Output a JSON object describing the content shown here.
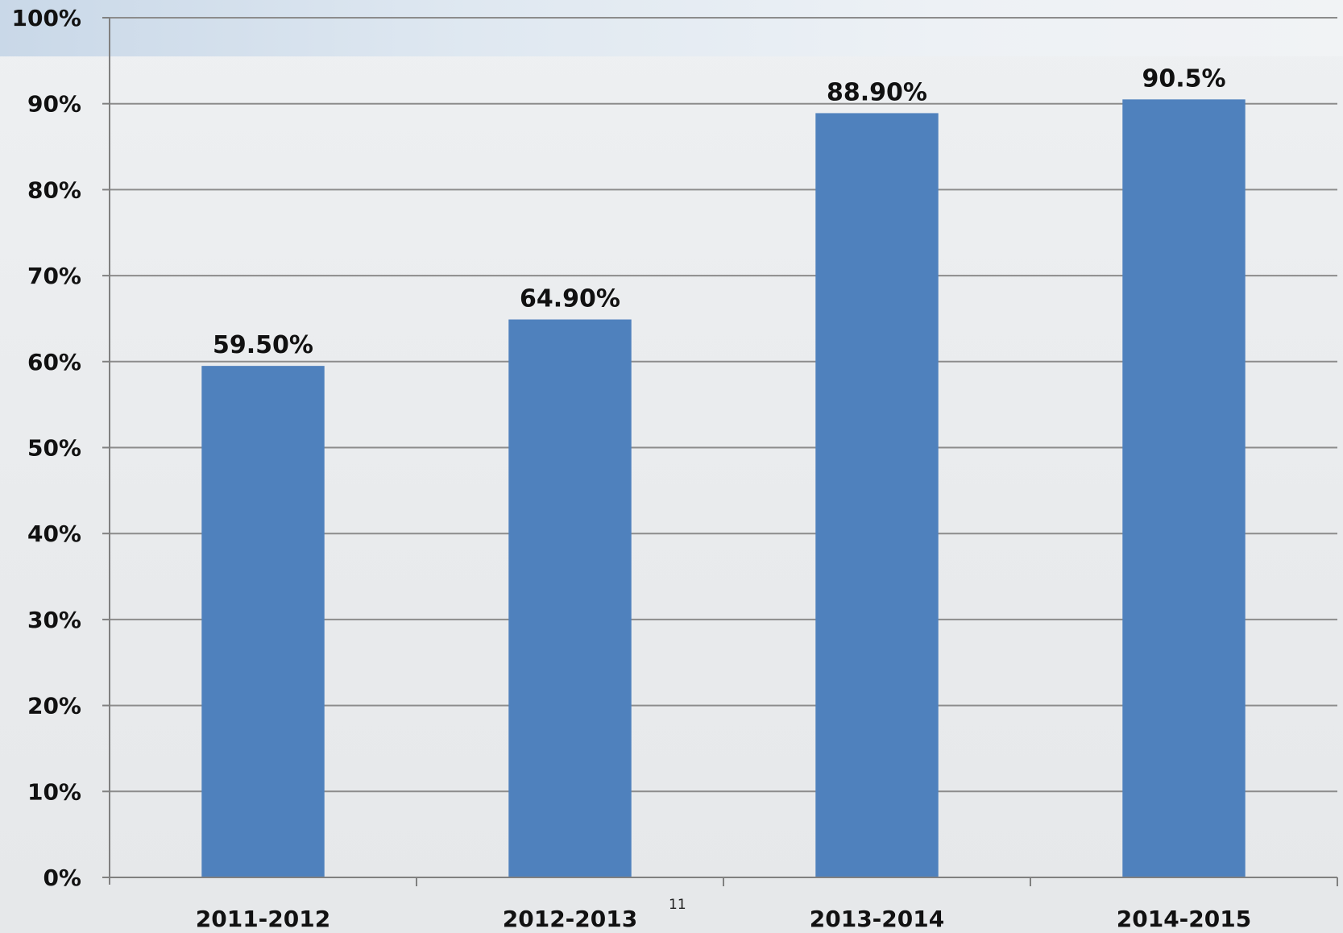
{
  "page_number": "11",
  "chart_data": {
    "type": "bar",
    "categories": [
      "2011-2012",
      "2012-2013",
      "2013-2014",
      "2014-2015"
    ],
    "values": [
      59.5,
      64.9,
      88.9,
      90.5
    ],
    "data_labels": [
      "59.50%",
      "64.90%",
      "88.90%",
      "90.5%"
    ],
    "y_ticks": [
      0,
      10,
      20,
      30,
      40,
      50,
      60,
      70,
      80,
      90,
      100
    ],
    "y_tick_labels": [
      "0%",
      "10%",
      "20%",
      "30%",
      "40%",
      "50%",
      "60%",
      "70%",
      "80%",
      "90%",
      "100%"
    ],
    "ylim": [
      0,
      100
    ],
    "grid": true,
    "legend": "none",
    "colors": {
      "bar": "#4f81bd",
      "grid": "#8c8c8c",
      "axis": "#808080"
    }
  }
}
